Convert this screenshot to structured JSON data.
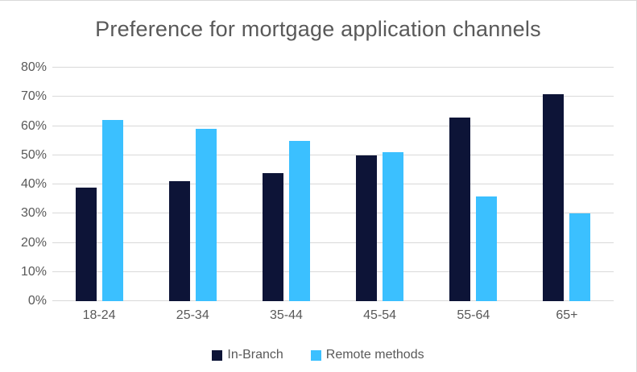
{
  "title": "Preference for mortgage application channels",
  "chart_data": {
    "type": "bar",
    "title": "Preference for mortgage application channels",
    "categories": [
      "18-24",
      "25-34",
      "35-44",
      "45-54",
      "55-64",
      "65+"
    ],
    "series": [
      {
        "name": "In-Branch",
        "color": "#0d1437",
        "values": [
          39,
          41,
          44,
          50,
          63,
          71
        ]
      },
      {
        "name": "Remote methods",
        "color": "#3bc0ff",
        "values": [
          62,
          59,
          55,
          51,
          36,
          30
        ]
      }
    ],
    "xlabel": "",
    "ylabel": "",
    "ylim": [
      0,
      80
    ],
    "ytick_step": 10,
    "ytick_labels": [
      "0%",
      "10%",
      "20%",
      "30%",
      "40%",
      "50%",
      "60%",
      "70%",
      "80%"
    ],
    "grid": true,
    "legend_position": "bottom"
  },
  "colors": {
    "in_branch": "#0d1437",
    "remote_methods": "#3bc0ff",
    "title_text": "#595959",
    "axis_text": "#595959",
    "gridline": "#d9d9d9",
    "frame_border": "#d9d9d9",
    "background": "#ffffff"
  }
}
